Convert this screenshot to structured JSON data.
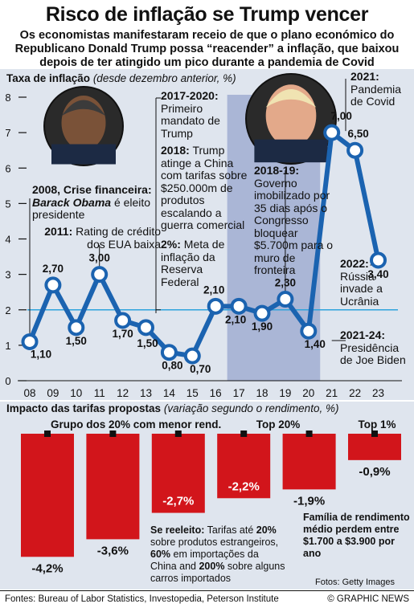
{
  "header": {
    "title": "Risco de inflação se Trump vencer",
    "subtitle_lines": [
      "Os economistas manifestaram receio de que o plano económico do",
      "Republicano Donald Trump possa “reacender” a inflação, que baixou",
      "depois de ter atingido um pico durante a pandemia de Covid"
    ]
  },
  "chart_data": [
    {
      "type": "line",
      "title": "Taxa de inflação",
      "title_note": "(desde dezembro anterior, %)",
      "categories": [
        "08",
        "09",
        "10",
        "11",
        "12",
        "13",
        "14",
        "15",
        "16",
        "17",
        "18",
        "19",
        "20",
        "21",
        "22",
        "23"
      ],
      "values": [
        1.1,
        2.7,
        1.5,
        3.0,
        1.7,
        1.5,
        0.8,
        0.7,
        2.1,
        2.1,
        1.9,
        2.3,
        1.4,
        7.0,
        6.5,
        3.4
      ],
      "value_labels": [
        "1,10",
        "2,70",
        "1,50",
        "3,00",
        "1,70",
        "1,50",
        "0,80",
        "0,70",
        "2,10",
        "2,10",
        "1,90",
        "2,30",
        "1,40",
        "7,00",
        "6,50",
        "3,40"
      ],
      "reference_line": 2,
      "ylim": [
        0,
        8
      ],
      "yticks": [
        "0",
        "1",
        "2",
        "3",
        "4",
        "5",
        "6",
        "7",
        "8"
      ],
      "shaded_period": [
        "17",
        "20"
      ],
      "colors": {
        "line": "#1b63b0",
        "reference": "#2ea3dc",
        "shade": "#aab6d6",
        "background": "#dfe5ee"
      },
      "annotations": {
        "obama": "2008, Crise financeira: |Barack Obama| é eleito presidente",
        "credit": "2011: Rating de crédito dos EUA baixa",
        "trump_term": "2017-2020: Primeiro mandato de Trump",
        "tariffs": "2018: Trump atinge a China com tarifas sobre $250.000m de produtos escalando a guerra comercial",
        "target": "2%: Meta de inflação da Reserva Federal",
        "shutdown": "2018-19: Governo imobilizado por 35 dias após o Congresso bloquear $5.700m para o muro de fronteira",
        "covid": "2021: Pandemia de Covid",
        "russia": "2022: Rússia invade a Ucrânia",
        "biden": "2021-24: Presidência de Joe Biden"
      }
    },
    {
      "type": "bar",
      "title": "Impacto das tarifas propostas",
      "title_note": "(variação segundo o rendimento, %)",
      "categories": [
        "Grupo dos 20% com menor rend.",
        "",
        "",
        "",
        "Top 20%",
        "Top 1%"
      ],
      "values": [
        -4.2,
        -3.6,
        -2.7,
        -2.2,
        -1.9,
        -0.9
      ],
      "value_labels": [
        "-4,2%",
        "-3,6%",
        "-2,7%",
        "-2,2%",
        "-1,9%",
        "-0,9%"
      ],
      "colors": {
        "bar": "#d2151b"
      }
    }
  ],
  "impact_notes": {
    "reelect_title": "Se reeleito:",
    "reelect_text": "Tarifas até |20%| sobre produtos estrangeiros, |60%| em importações da China and |200%| sobre alguns carros importados",
    "family_text": "Família de rendimento médio perdem entre $1.700 a $3.900 por ano",
    "photos": "Fotos: Getty Images"
  },
  "footer": {
    "sources": "Fontes: Bureau of Labor Statistics, Investopedia, Peterson Institute",
    "credit": "© GRAPHIC NEWS"
  }
}
